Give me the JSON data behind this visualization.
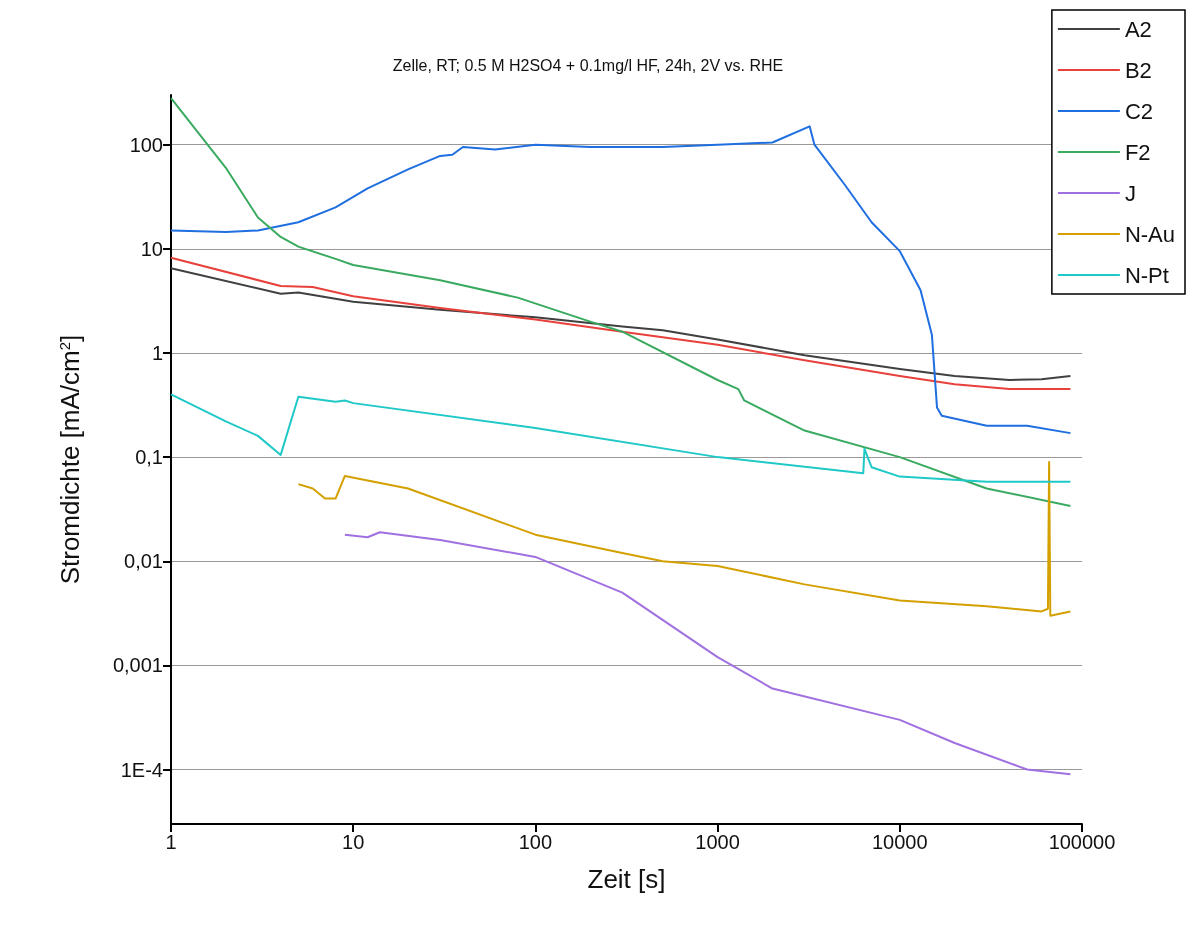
{
  "chart_data": {
    "type": "line",
    "title": "Zelle, RT; 0.5 M H2SO4 + 0.1mg/l HF, 24h, 2V vs. RHE",
    "xlabel": "Zeit [s]",
    "ylabel": "Stromdichte [mA/cm$^{2}$]",
    "log": "xy",
    "grid": "y",
    "legend": "top right",
    "line_style": "solid",
    "marker": "none",
    "xlim": [
      1,
      100000
    ],
    "xticks": [
      1,
      10,
      100,
      1000,
      10000,
      100000
    ],
    "ylim": [
      3e-05,
      300
    ],
    "yticks": [
      {
        "value": 0.0001,
        "label": "1E-4"
      },
      {
        "value": 0.001,
        "label": "0,001"
      },
      {
        "value": 0.01,
        "label": "0,01"
      },
      {
        "value": 0.1,
        "label": "0,1"
      },
      1,
      10,
      100
    ],
    "series": [
      {
        "name": "A2",
        "color": "#404040",
        "x": [
          1,
          4,
          5,
          10,
          30,
          100,
          300,
          500,
          1000,
          3000,
          10000,
          20000,
          40000,
          60000,
          86400
        ],
        "values": [
          6.5,
          3.7,
          3.8,
          3.1,
          2.6,
          2.2,
          1.8,
          1.65,
          1.35,
          0.95,
          0.7,
          0.6,
          0.55,
          0.56,
          0.6
        ]
      },
      {
        "name": "B2",
        "color": "#e8403a",
        "x": [
          1,
          4,
          6,
          10,
          30,
          100,
          300,
          1000,
          3000,
          10000,
          20000,
          40000,
          86400
        ],
        "values": [
          8.2,
          4.4,
          4.3,
          3.5,
          2.7,
          2.1,
          1.6,
          1.2,
          0.85,
          0.6,
          0.5,
          0.45,
          0.45
        ]
      },
      {
        "name": "C2",
        "color": "#1f6fe0",
        "x": [
          1,
          2,
          3,
          5,
          8,
          12,
          20,
          30,
          35,
          40,
          60,
          100,
          200,
          500,
          1000,
          2000,
          3200,
          3400,
          5000,
          7000,
          10000,
          13000,
          15000,
          16000,
          17000,
          30000,
          50000,
          86400
        ],
        "values": [
          15,
          14.5,
          15,
          18,
          25,
          38,
          58,
          78,
          80,
          95,
          90,
          100,
          95,
          95,
          100,
          105,
          150,
          100,
          41,
          18,
          9.5,
          4,
          1.5,
          0.3,
          0.25,
          0.2,
          0.2,
          0.17
        ]
      },
      {
        "name": "F2",
        "color": "#3aaa60",
        "x": [
          1,
          2,
          3,
          4,
          5,
          8,
          10,
          30,
          80,
          200,
          300,
          1000,
          1300,
          1400,
          3000,
          10000,
          30000,
          86400
        ],
        "values": [
          280,
          60,
          20,
          13,
          10.5,
          8,
          7,
          5,
          3.4,
          2,
          1.6,
          0.55,
          0.45,
          0.35,
          0.18,
          0.1,
          0.05,
          0.034
        ]
      },
      {
        "name": "J",
        "color": "#a070e0",
        "x": [
          9,
          12,
          14,
          30,
          100,
          300,
          1000,
          2000,
          10000,
          20000,
          50000,
          86400
        ],
        "values": [
          0.018,
          0.017,
          0.019,
          0.016,
          0.011,
          0.005,
          0.0012,
          0.0006,
          0.0003,
          0.00018,
          0.0001,
          9e-05
        ]
      },
      {
        "name": "N-Au",
        "color": "#d4a000",
        "x": [
          5,
          6,
          7,
          8,
          9,
          20,
          100,
          300,
          500,
          1000,
          3000,
          10000,
          30000,
          60000,
          65000,
          66000,
          67000,
          86400
        ],
        "values": [
          0.055,
          0.05,
          0.04,
          0.04,
          0.066,
          0.05,
          0.018,
          0.012,
          0.01,
          0.009,
          0.006,
          0.0042,
          0.0037,
          0.0033,
          0.0035,
          0.09,
          0.003,
          0.0033
        ]
      },
      {
        "name": "N-Pt",
        "color": "#20c8c8",
        "x": [
          1,
          2,
          3,
          4,
          5,
          8,
          9,
          10,
          100,
          1000,
          6300,
          6400,
          7000,
          10000,
          30000,
          86400
        ],
        "values": [
          0.4,
          0.22,
          0.16,
          0.105,
          0.38,
          0.34,
          0.35,
          0.33,
          0.19,
          0.1,
          0.07,
          0.12,
          0.08,
          0.065,
          0.058,
          0.058
        ]
      }
    ]
  }
}
